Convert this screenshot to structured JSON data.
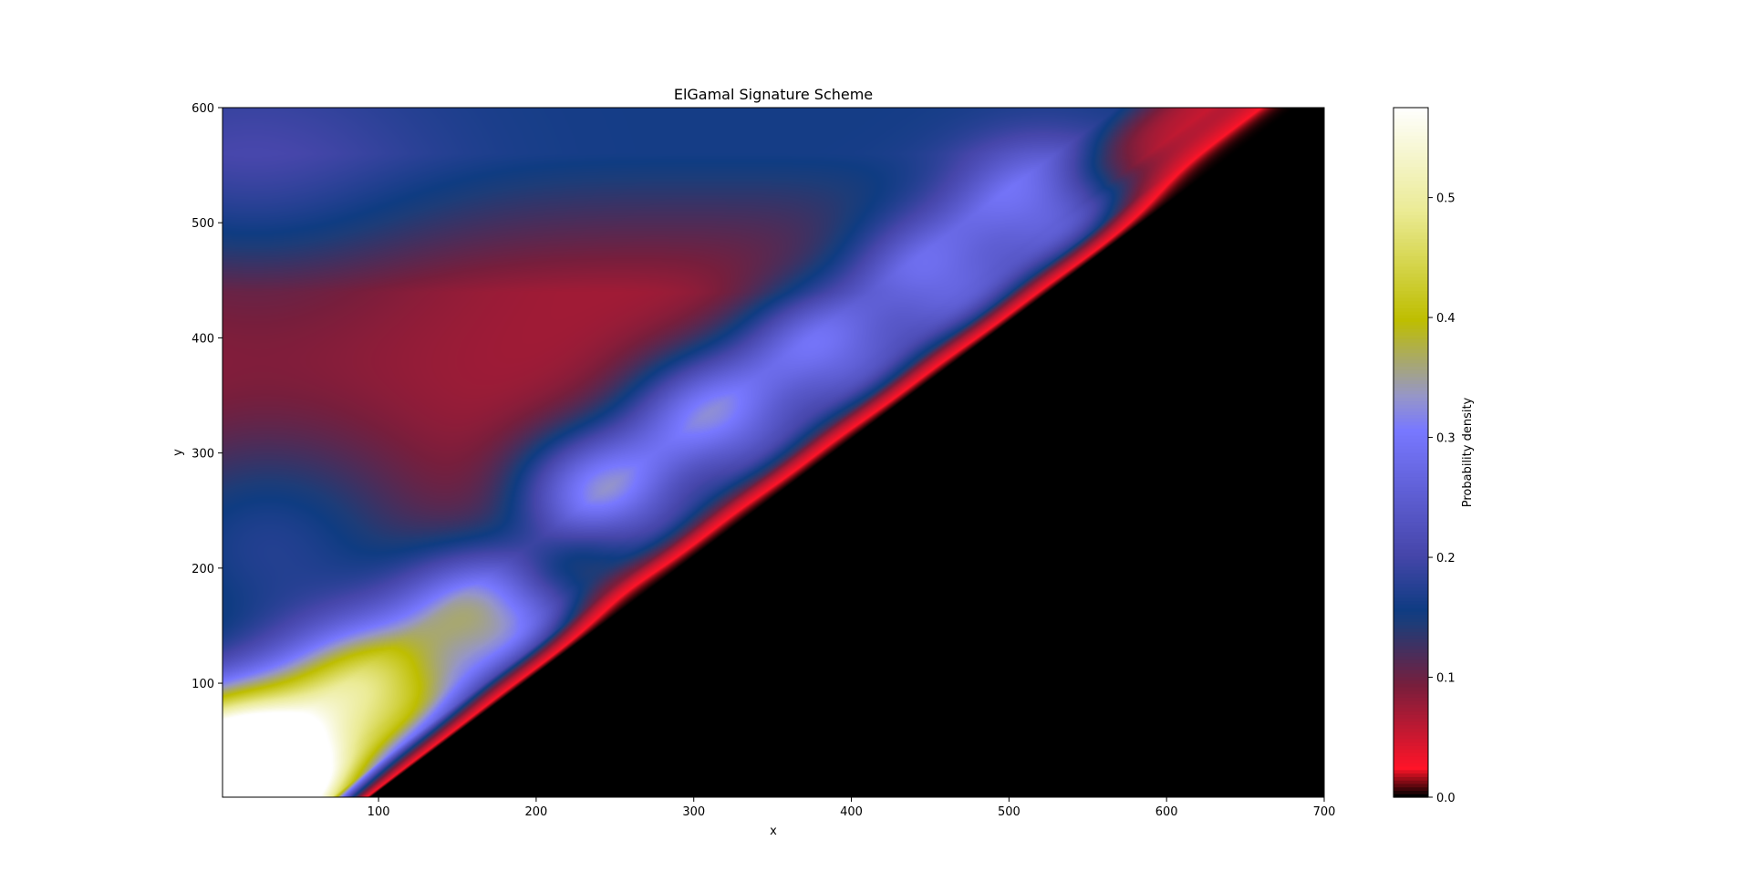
{
  "chart_data": {
    "type": "heatmap",
    "title": "ElGamal Signature Scheme",
    "xlabel": "x",
    "ylabel": "y",
    "xlim": [
      1,
      700
    ],
    "ylim": [
      1,
      600
    ],
    "x_ticks": [
      100,
      200,
      300,
      400,
      500,
      600,
      700
    ],
    "y_ticks": [
      100,
      200,
      300,
      400,
      500,
      600
    ],
    "colormap": "gist_stern",
    "colorbar": {
      "label": "Probability density",
      "range": [
        0.0,
        0.575
      ],
      "ticks": [
        0.0,
        0.1,
        0.2,
        0.3,
        0.4,
        0.5
      ],
      "tick_labels": [
        "0.0",
        "0.1",
        "0.2",
        "0.3",
        "0.4",
        "0.5"
      ]
    },
    "grid": false,
    "z_summary": {
      "peak": {
        "x": 1,
        "y": 1,
        "value": 0.57
      },
      "diagonal_band_blobs": [
        {
          "x": 100,
          "y": 95,
          "value": 0.35
        },
        {
          "x": 170,
          "y": 160,
          "value": 0.27
        },
        {
          "x": 245,
          "y": 265,
          "value": 0.25
        },
        {
          "x": 315,
          "y": 330,
          "value": 0.24
        },
        {
          "x": 385,
          "y": 390,
          "value": 0.22
        },
        {
          "x": 455,
          "y": 450,
          "value": 0.21
        },
        {
          "x": 522,
          "y": 510,
          "value": 0.2
        }
      ],
      "upper_left_region_value": 0.07,
      "upper_band_value": 0.09,
      "lower_right_region_value": 0.0
    }
  }
}
